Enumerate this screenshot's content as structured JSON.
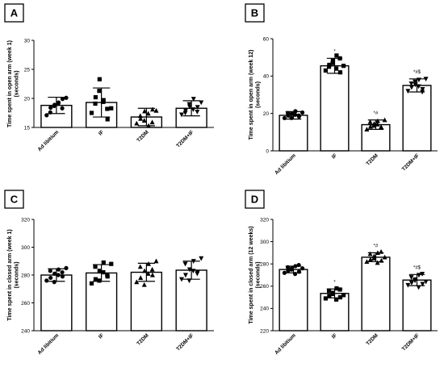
{
  "chart_data": [
    {
      "panel": "A",
      "type": "bar",
      "ylabel": "Time spent in open arm (week 1)\n(seconds)",
      "categories": [
        "Ad libitium",
        "IF",
        "T2DM",
        "T2DM+IF"
      ],
      "values": [
        18.8,
        19.3,
        16.8,
        18.3
      ],
      "errors": [
        1.4,
        2.5,
        1.5,
        1.3
      ],
      "ylim": [
        15,
        30
      ],
      "yticks": [
        "15",
        "20",
        "25",
        "30"
      ],
      "ytick_values": [
        15,
        20,
        25,
        30
      ],
      "significance": [
        "",
        "",
        "",
        ""
      ],
      "markers": [
        "circle",
        "square",
        "triangle",
        "triangle-down"
      ],
      "points": [
        [
          17.1,
          18.4,
          18.9,
          19.3,
          19.9,
          17.6,
          18.7,
          19.1,
          18.3,
          20.1
        ],
        [
          17.5,
          20.2,
          23.3,
          19.7,
          16.4,
          19.1,
          21.3,
          19.4,
          18.2,
          18.3
        ],
        [
          15.7,
          16.5,
          17.8,
          15.3,
          18.1,
          17.0,
          16.2,
          17.4,
          15.9,
          17.9
        ],
        [
          17.2,
          17.9,
          18.6,
          19.9,
          18.5,
          17.5,
          19.0,
          18.1,
          17.7,
          19.3
        ]
      ]
    },
    {
      "panel": "B",
      "type": "bar",
      "ylabel": "Time spent in open arm (week 12)\n(seconds)",
      "categories": [
        "Ad libitium",
        "IF",
        "T2DM",
        "T2DM+IF"
      ],
      "values": [
        19,
        45.5,
        14,
        35
      ],
      "errors": [
        2,
        4,
        2.5,
        3.5
      ],
      "ylim": [
        0,
        60
      ],
      "yticks": [
        "0",
        "20",
        "40",
        "60"
      ],
      "ytick_values": [
        0,
        20,
        40,
        60
      ],
      "significance": [
        "",
        "*",
        "*#",
        "*#$"
      ],
      "markers": [
        "circle",
        "square",
        "triangle",
        "triangle-down"
      ],
      "points": [
        [
          17.5,
          18.8,
          19.9,
          21.2,
          18.4,
          20.2,
          17.6,
          19.3,
          18.9,
          20.5
        ],
        [
          43,
          46,
          48.5,
          51,
          42,
          45,
          47,
          44,
          49.5,
          45.5
        ],
        [
          11.5,
          13,
          14.5,
          16,
          12.5,
          15.5,
          13.5,
          14.2,
          12.8,
          16.5
        ],
        [
          32,
          34,
          35.5,
          38,
          33,
          36,
          37,
          34.5,
          31.5,
          38.5
        ]
      ]
    },
    {
      "panel": "C",
      "type": "bar",
      "ylabel": "Time spent in closed arm (week 1)\n(seconds)",
      "categories": [
        "Ad libitium",
        "IF",
        "T2DM",
        "T2DM+IF"
      ],
      "values": [
        280,
        281.5,
        282,
        283.5
      ],
      "errors": [
        4.5,
        6,
        6.5,
        6.5
      ],
      "ylim": [
        240,
        320
      ],
      "yticks": [
        "240",
        "260",
        "280",
        "300",
        "320"
      ],
      "ytick_values": [
        240,
        260,
        280,
        300,
        320
      ],
      "significance": [
        "",
        "",
        "",
        ""
      ],
      "markers": [
        "circle",
        "square",
        "triangle",
        "triangle-down"
      ],
      "points": [
        [
          276,
          278,
          281,
          284,
          279,
          283,
          275,
          280,
          282,
          285
        ],
        [
          274,
          277,
          283,
          289,
          279,
          286,
          276,
          282,
          280,
          288
        ],
        [
          275,
          278,
          283,
          288,
          280,
          286,
          273,
          281,
          284,
          290
        ],
        [
          277,
          280,
          284,
          290,
          282,
          288,
          276,
          283,
          281,
          292
        ]
      ]
    },
    {
      "panel": "D",
      "type": "bar",
      "ylabel": "Time spent in closed arm (12 weeks)\n(seconds)",
      "categories": [
        "Ad libitium",
        "IF",
        "T2DM",
        "T2DM+IF"
      ],
      "values": [
        275,
        253.5,
        286,
        265.5
      ],
      "errors": [
        3,
        4,
        4,
        5
      ],
      "ylim": [
        220,
        320
      ],
      "yticks": [
        "220",
        "240",
        "260",
        "280",
        "300",
        "320"
      ],
      "ytick_values": [
        220,
        240,
        260,
        280,
        300,
        320
      ],
      "significance": [
        "",
        "*",
        "*#",
        "*#$"
      ],
      "markers": [
        "circle",
        "square",
        "triangle",
        "triangle-down"
      ],
      "points": [
        [
          272,
          274,
          276,
          278,
          273,
          277,
          275,
          271,
          279,
          276
        ],
        [
          249,
          251,
          254,
          258,
          250,
          256,
          253,
          248,
          257,
          252
        ],
        [
          282,
          284,
          287,
          290,
          283,
          289,
          285,
          281,
          291,
          286
        ],
        [
          261,
          263,
          266,
          270,
          262,
          268,
          265,
          259,
          271,
          264
        ]
      ]
    }
  ]
}
